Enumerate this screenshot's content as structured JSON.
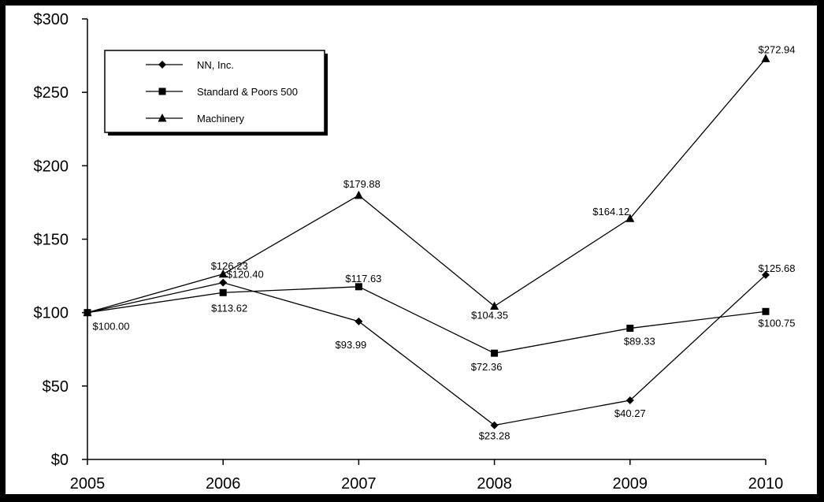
{
  "chart_data": {
    "type": "line",
    "categories": [
      "2005",
      "2006",
      "2007",
      "2008",
      "2009",
      "2010"
    ],
    "ylim": [
      0,
      300
    ],
    "yticks": [
      0,
      50,
      100,
      150,
      200,
      250,
      300
    ],
    "ytick_labels": [
      "$0",
      "$50",
      "$100",
      "$150",
      "$200",
      "$250",
      "$300"
    ],
    "grid": false,
    "legend_position": "top-left",
    "series": [
      {
        "name": "NN, Inc.",
        "marker": "diamond",
        "values": [
          100.0,
          120.4,
          93.99,
          23.28,
          40.27,
          125.68
        ],
        "labels": [
          "$100.00",
          "$120.40",
          "$93.99",
          "$23.28",
          "$40.27",
          "$125.68"
        ]
      },
      {
        "name": "Standard & Poors 500",
        "marker": "square",
        "values": [
          100.0,
          113.62,
          117.63,
          72.36,
          89.33,
          100.75
        ],
        "labels": [
          "",
          "$113.62",
          "$117.63",
          "$72.36",
          "$89.33",
          "$100.75"
        ]
      },
      {
        "name": "Machinery",
        "marker": "triangle",
        "values": [
          100.0,
          126.23,
          179.88,
          104.35,
          164.12,
          272.94
        ],
        "labels": [
          "",
          "$126.23",
          "$179.88",
          "$104.35",
          "$164.12",
          "$272.94"
        ]
      }
    ],
    "colors": {
      "line": "#000000",
      "background": "#ffffff",
      "frame": "#000000"
    }
  }
}
